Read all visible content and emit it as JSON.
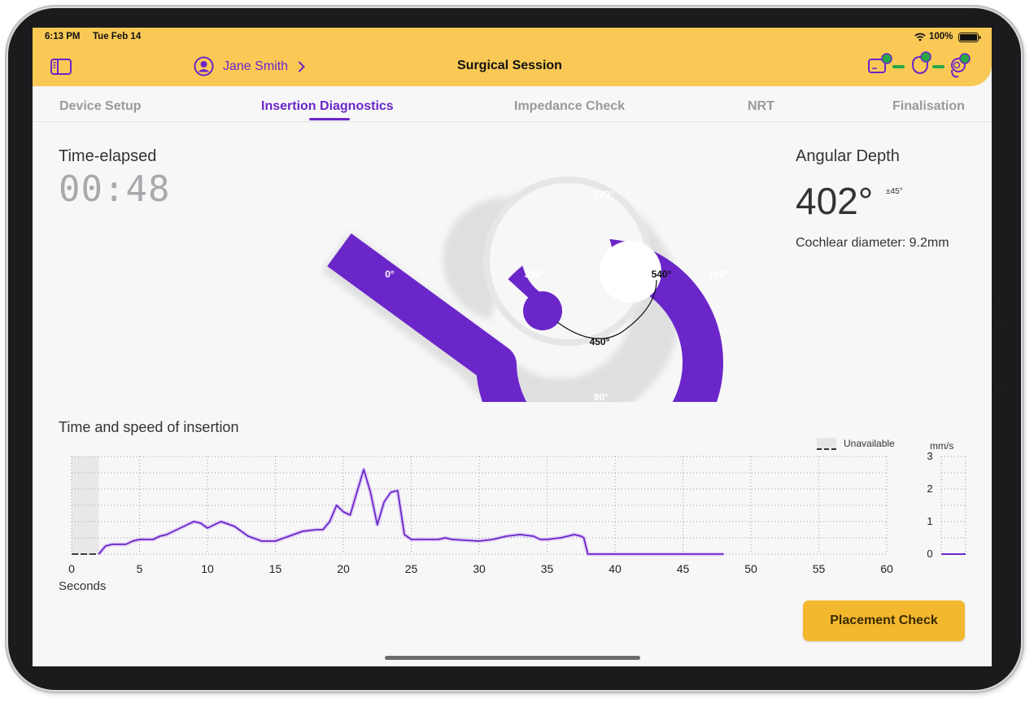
{
  "status_bar": {
    "time": "6:13 PM",
    "date": "Tue Feb 14",
    "battery": "100%"
  },
  "header": {
    "patient_name": "Jane Smith",
    "title": "Surgical Session"
  },
  "tabs": [
    {
      "label": "Device Setup",
      "active": false
    },
    {
      "label": "Insertion Diagnostics",
      "active": true
    },
    {
      "label": "Impedance Check",
      "active": false
    },
    {
      "label": "NRT",
      "active": false
    },
    {
      "label": "Finalisation",
      "active": false
    }
  ],
  "timer": {
    "label": "Time-elapsed",
    "value": "00:48"
  },
  "cochlea": {
    "labels": [
      "0°",
      "90°",
      "180°",
      "270°",
      "360°",
      "450°",
      "540°"
    ]
  },
  "angular_depth": {
    "label": "Angular Depth",
    "value": "402°",
    "tolerance": "±45°",
    "diameter_text": "Cochlear diameter: 9.2mm"
  },
  "chart_data": {
    "type": "line",
    "title": "Time and speed of insertion",
    "xlabel": "Seconds",
    "ylabel": "mm/s",
    "xlim": [
      0,
      60
    ],
    "ylim": [
      0,
      3
    ],
    "x_ticks": [
      "0",
      "5",
      "10",
      "15",
      "20",
      "25",
      "30",
      "35",
      "40",
      "45",
      "50",
      "55",
      "60"
    ],
    "y_ticks": [
      "3",
      "2",
      "1",
      "0"
    ],
    "legend": "Unavailable",
    "unavailable_range": [
      0,
      2
    ],
    "grid": true,
    "series": [
      {
        "x": [
          2,
          2.5,
          3,
          4,
          4.5,
          5,
          6,
          6.5,
          7,
          8,
          8.5,
          9,
          9.5,
          10,
          11,
          12,
          13,
          14,
          15,
          16,
          17,
          18,
          18.5,
          19,
          19.5,
          20,
          20.5,
          21,
          21.5,
          22,
          22.5,
          23,
          23.5,
          24,
          24.5,
          25,
          26,
          27,
          27.5,
          28,
          30,
          31,
          32,
          33,
          34,
          34.5,
          35,
          36,
          37,
          37.5,
          37.7,
          38,
          40,
          45,
          48
        ],
        "y": [
          0,
          0.25,
          0.3,
          0.3,
          0.4,
          0.45,
          0.45,
          0.55,
          0.6,
          0.8,
          0.9,
          1.0,
          0.95,
          0.8,
          1.0,
          0.85,
          0.55,
          0.4,
          0.4,
          0.55,
          0.7,
          0.75,
          0.75,
          1.0,
          1.5,
          1.3,
          1.2,
          1.9,
          2.6,
          1.9,
          0.9,
          1.6,
          1.9,
          1.95,
          0.6,
          0.45,
          0.45,
          0.45,
          0.5,
          0.45,
          0.4,
          0.45,
          0.55,
          0.6,
          0.55,
          0.45,
          0.45,
          0.5,
          0.6,
          0.55,
          0.5,
          0,
          0,
          0,
          0
        ]
      }
    ],
    "mini_gauge": {
      "value": 0
    }
  },
  "buttons": {
    "placement_check": "Placement Check"
  },
  "colors": {
    "accent": "#6b26c9",
    "header": "#fac955",
    "button": "#f4b82e"
  }
}
